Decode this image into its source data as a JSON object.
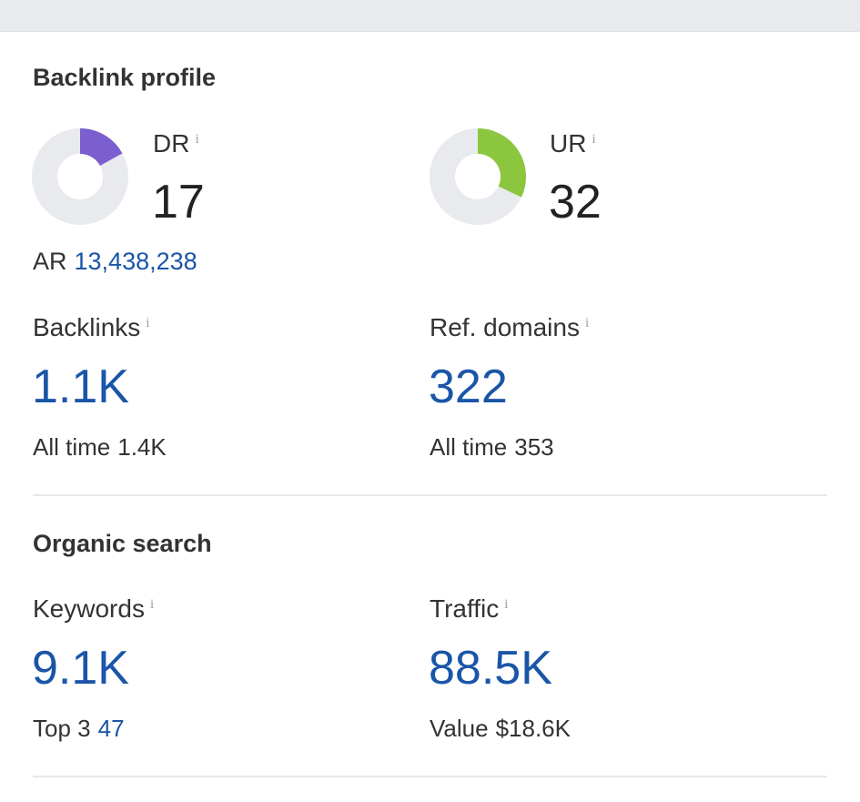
{
  "backlink_profile": {
    "title": "Backlink profile",
    "dr": {
      "label": "DR",
      "value": "17",
      "fill_fraction": 0.17,
      "color": "#7b5fcf"
    },
    "ur": {
      "label": "UR",
      "value": "32",
      "fill_fraction": 0.32,
      "color": "#8cc63f"
    },
    "ar": {
      "label": "AR",
      "value": "13,438,238"
    },
    "backlinks": {
      "label": "Backlinks",
      "value": "1.1K",
      "sub_label": "All time",
      "sub_value": "1.4K"
    },
    "ref_domains": {
      "label": "Ref. domains",
      "value": "322",
      "sub_label": "All time",
      "sub_value": "353"
    }
  },
  "organic_search": {
    "title": "Organic search",
    "keywords": {
      "label": "Keywords",
      "value": "9.1K",
      "sub_label": "Top 3",
      "sub_value": "47"
    },
    "traffic": {
      "label": "Traffic",
      "value": "88.5K",
      "sub_label": "Value",
      "sub_value": "$18.6K"
    }
  },
  "info_glyph": "i",
  "colors": {
    "link": "#1a55a8",
    "gauge_track": "#e9eaee"
  }
}
